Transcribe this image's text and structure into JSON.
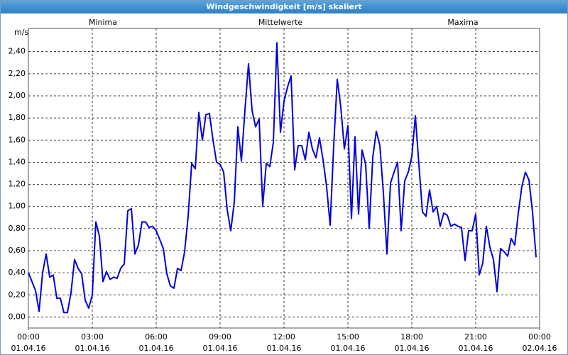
{
  "chart_data": {
    "type": "line",
    "title": "Windgeschwindigkeit [m/s] skaliert",
    "y_label": "m/s",
    "legend_left": {
      "text": "Minima",
      "color": "#00a000"
    },
    "legend_right": {
      "text": "Maxima",
      "color": "#900000"
    },
    "series": [
      {
        "name": "Mittelwerte",
        "color": "#0000dd",
        "label_color": "#000080",
        "values": [
          0.4,
          0.32,
          0.24,
          0.05,
          0.4,
          0.57,
          0.36,
          0.38,
          0.17,
          0.17,
          0.04,
          0.04,
          0.22,
          0.52,
          0.44,
          0.39,
          0.15,
          0.08,
          0.2,
          0.86,
          0.73,
          0.32,
          0.41,
          0.34,
          0.36,
          0.35,
          0.44,
          0.48,
          0.96,
          0.98,
          0.57,
          0.65,
          0.86,
          0.86,
          0.81,
          0.82,
          0.78,
          0.7,
          0.62,
          0.39,
          0.28,
          0.26,
          0.44,
          0.42,
          0.59,
          0.91,
          1.39,
          1.34,
          1.85,
          1.6,
          1.83,
          1.84,
          1.6,
          1.4,
          1.38,
          1.31,
          0.97,
          0.78,
          1.04,
          1.72,
          1.41,
          1.87,
          2.29,
          1.87,
          1.72,
          1.79,
          1.0,
          1.39,
          1.36,
          1.58,
          2.48,
          1.67,
          1.95,
          2.08,
          2.18,
          1.33,
          1.55,
          1.55,
          1.42,
          1.67,
          1.52,
          1.44,
          1.62,
          1.42,
          1.18,
          0.83,
          1.55,
          2.15,
          1.9,
          1.52,
          1.73,
          0.89,
          1.63,
          0.93,
          1.51,
          1.38,
          0.8,
          1.44,
          1.68,
          1.55,
          1.12,
          0.57,
          1.21,
          1.31,
          1.4,
          0.78,
          1.23,
          1.31,
          1.45,
          1.82,
          1.38,
          0.95,
          0.91,
          1.15,
          0.95,
          1.0,
          0.82,
          0.94,
          0.92,
          0.82,
          0.84,
          0.82,
          0.81,
          0.51,
          0.78,
          0.78,
          0.93,
          0.38,
          0.49,
          0.82,
          0.63,
          0.52,
          0.23,
          0.62,
          0.59,
          0.55,
          0.71,
          0.65,
          0.94,
          1.18,
          1.31,
          1.24,
          0.95,
          0.54
        ]
      }
    ],
    "x": [
      0,
      10,
      20,
      30,
      40,
      50,
      60,
      70,
      80,
      90,
      100,
      110,
      120,
      130,
      140,
      150,
      160,
      170,
      180,
      190,
      200,
      210,
      220,
      230,
      240,
      250,
      260,
      270,
      280,
      290,
      300,
      310,
      320,
      330,
      340,
      350,
      360,
      370,
      380,
      390,
      400,
      410,
      420,
      430,
      440,
      450,
      460,
      470,
      480,
      490,
      500,
      510,
      520,
      530,
      540,
      550,
      560,
      570,
      580,
      590,
      600,
      610,
      620,
      630,
      640,
      650,
      660,
      670,
      680,
      690,
      700,
      710,
      720,
      730,
      740,
      750,
      760,
      770,
      780,
      790,
      800,
      810,
      820,
      830,
      840,
      850,
      860,
      870,
      880,
      890,
      900,
      910,
      920,
      930,
      940,
      950,
      960,
      970,
      980,
      990,
      1000,
      1010,
      1020,
      1030,
      1040,
      1050,
      1060,
      1070,
      1080,
      1090,
      1100,
      1110,
      1120,
      1130,
      1140,
      1150,
      1160,
      1170,
      1180,
      1190,
      1200,
      1210,
      1220,
      1230,
      1240,
      1250,
      1260,
      1270,
      1280,
      1290,
      1300,
      1310,
      1320,
      1330,
      1340,
      1350,
      1360,
      1370,
      1380,
      1390,
      1400,
      1410,
      1420,
      1430
    ],
    "xlim": [
      0,
      1440
    ],
    "xticks": [
      {
        "value": 0,
        "label": "00:00"
      },
      {
        "value": 180,
        "label": "03:00"
      },
      {
        "value": 360,
        "label": "06:00"
      },
      {
        "value": 540,
        "label": "09:00"
      },
      {
        "value": 720,
        "label": "12:00"
      },
      {
        "value": 900,
        "label": "15:00"
      },
      {
        "value": 1080,
        "label": "18:00"
      },
      {
        "value": 1260,
        "label": "21:00"
      },
      {
        "value": 1440,
        "label": "00:00"
      }
    ],
    "xtick_dates": [
      "01.04.16",
      "01.04.16",
      "01.04.16",
      "01.04.16",
      "01.04.16",
      "01.04.16",
      "01.04.16",
      "01.04.16",
      "02.04.16"
    ],
    "ylim": [
      -0.1,
      2.61
    ],
    "yticks": [
      {
        "value": 0,
        "label": "0,00"
      },
      {
        "value": 0.2,
        "label": "0,20"
      },
      {
        "value": 0.4,
        "label": "0,40"
      },
      {
        "value": 0.6,
        "label": "0,60"
      },
      {
        "value": 0.8,
        "label": "0,80"
      },
      {
        "value": 1,
        "label": "1,00"
      },
      {
        "value": 1.2,
        "label": "1,20"
      },
      {
        "value": 1.4,
        "label": "1,40"
      },
      {
        "value": 1.6,
        "label": "1,60"
      },
      {
        "value": 1.8,
        "label": "1,80"
      },
      {
        "value": 2,
        "label": "2,00"
      },
      {
        "value": 2.2,
        "label": "2,20"
      },
      {
        "value": 2.4,
        "label": "2,40"
      }
    ],
    "grid": true
  }
}
